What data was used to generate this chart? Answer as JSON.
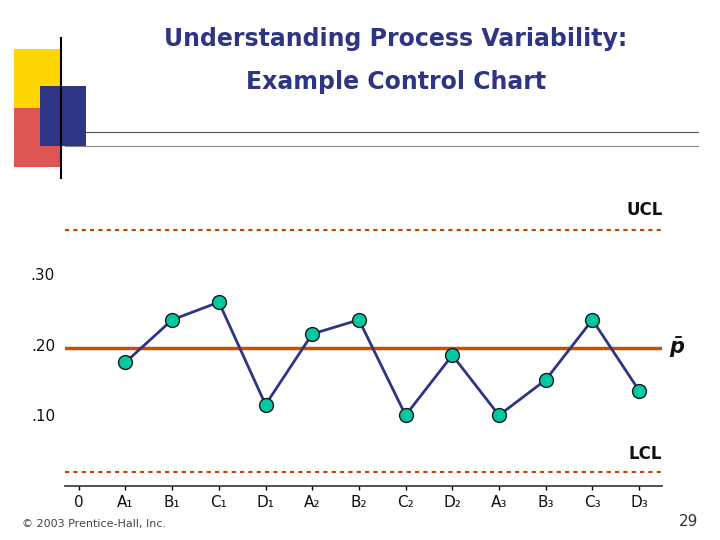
{
  "title_line1": "Understanding Process Variability:",
  "title_line2": "Example Control Chart",
  "title_color": "#2E3585",
  "background_color": "#FFFFFF",
  "categories": [
    "0",
    "A₁",
    "B₁",
    "C₁",
    "D₁",
    "A₂",
    "B₂",
    "C₂",
    "D₂",
    "A₃",
    "B₃",
    "C₃",
    "D₃"
  ],
  "x_values": [
    0,
    1,
    2,
    3,
    4,
    5,
    6,
    7,
    8,
    9,
    10,
    11,
    12
  ],
  "y_values": [
    null,
    0.175,
    0.235,
    0.26,
    0.115,
    0.215,
    0.235,
    0.1,
    0.185,
    0.1,
    0.15,
    0.235,
    0.135
  ],
  "ucl": 0.362,
  "lcl": 0.02,
  "p_bar": 0.195,
  "ylim_min": 0.0,
  "ylim_max": 0.42,
  "yticks": [
    0.1,
    0.2,
    0.3
  ],
  "ytick_labels": [
    ".10",
    ".20",
    ".30"
  ],
  "line_color": "#2E3585",
  "dot_face_color": "#00C8A0",
  "dot_edge_color": "#1A1A1A",
  "center_line_color": "#C85000",
  "ucl_line_color": "#C84000",
  "lcl_line_color": "#C84000",
  "ucl_label": "UCL",
  "lcl_label": "LCL",
  "p_bar_label": "$\\mathregular{\\bar{p}}$",
  "footer_text": "© 2003 Prentice-Hall, Inc.",
  "page_number": "29",
  "dot_size": 100,
  "line_width": 2.0,
  "logo_yellow": "#FFD700",
  "logo_red": "#DD5555",
  "logo_blue": "#2E3585"
}
